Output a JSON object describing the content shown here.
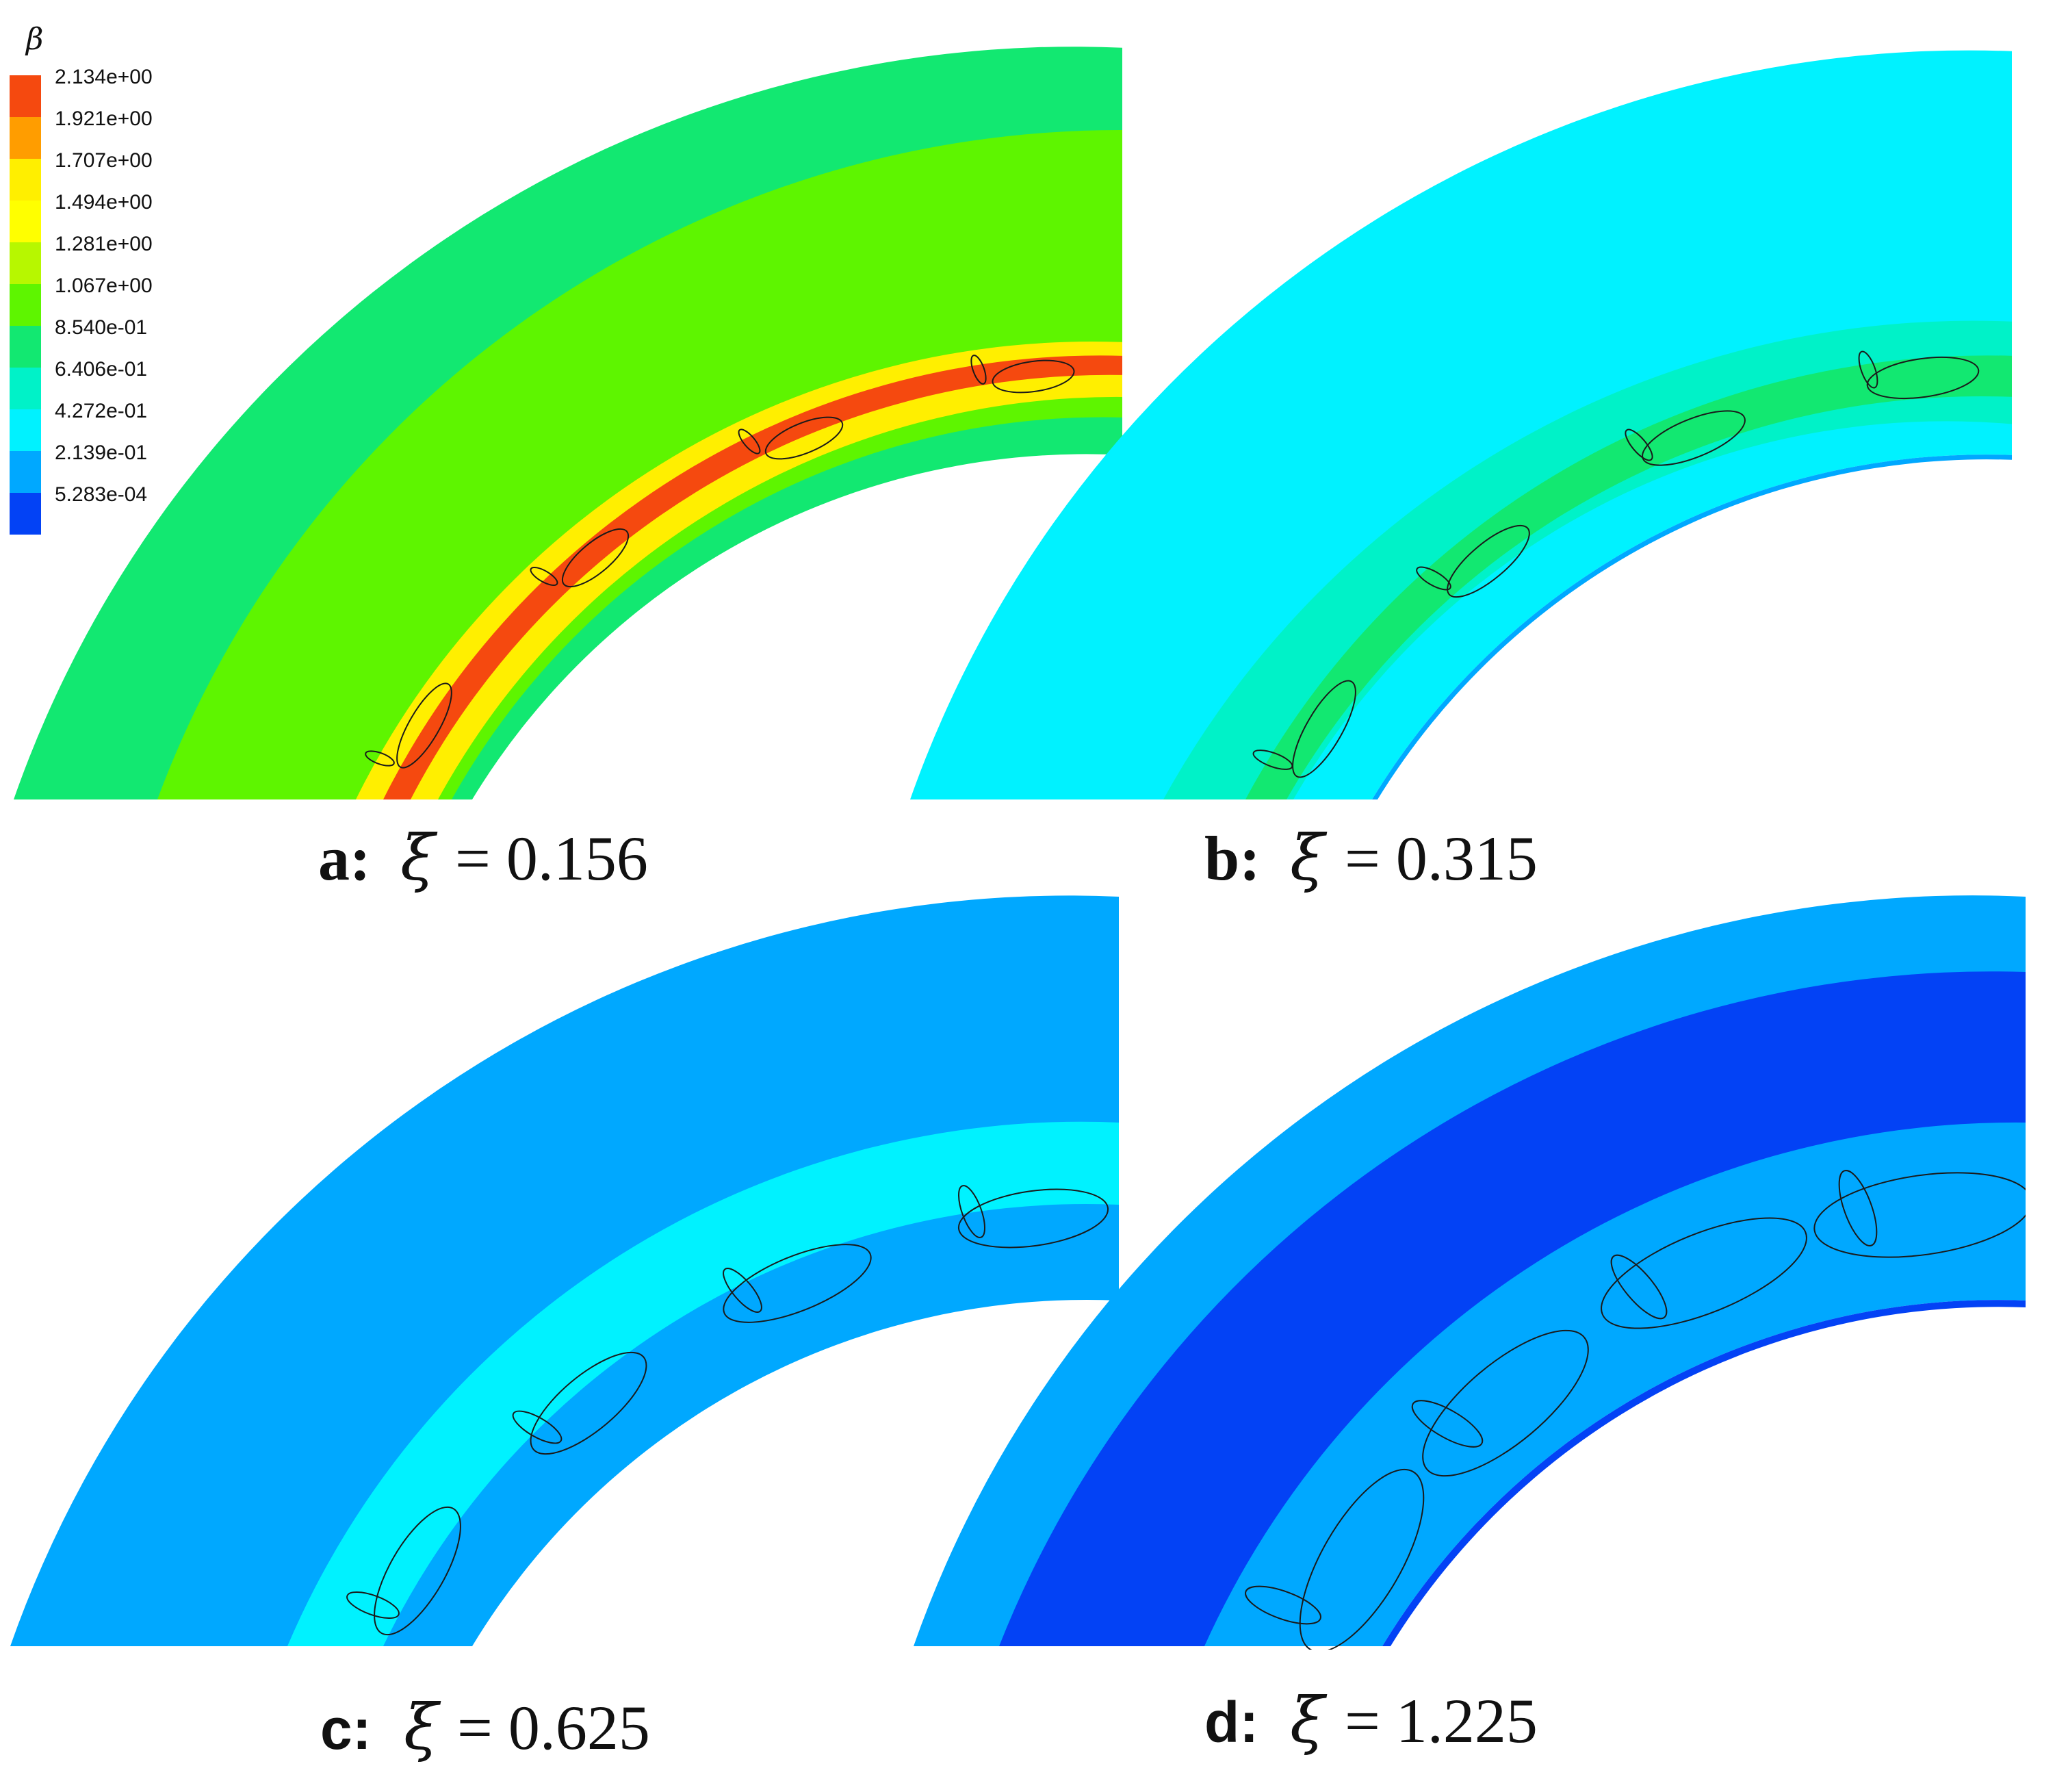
{
  "legend": {
    "symbol": "β",
    "levels": [
      {
        "label": "2.134e+00",
        "color": "#f5490f"
      },
      {
        "label": "1.921e+00",
        "color": "#ff9d00"
      },
      {
        "label": "1.707e+00",
        "color": "#ffef00"
      },
      {
        "label": "1.494e+00",
        "color": "#ffff00"
      },
      {
        "label": "1.281e+00",
        "color": "#b7f700"
      },
      {
        "label": "1.067e+00",
        "color": "#5ef500"
      },
      {
        "label": "8.540e-01",
        "color": "#12e871"
      },
      {
        "label": "6.406e-01",
        "color": "#00f2c8"
      },
      {
        "label": "4.272e-01",
        "color": "#00f2ff"
      },
      {
        "label": "2.139e-01",
        "color": "#00a8ff"
      },
      {
        "label": "5.283e-04",
        "color": "#0342f5"
      }
    ]
  },
  "panels": [
    {
      "id": "a",
      "letter": "a:",
      "symbol": "ξ",
      "value": "= 0.156",
      "background": "#12e871",
      "band": "#5ef500",
      "core": "#ffef00",
      "hot": "#f5490f"
    },
    {
      "id": "b",
      "letter": "b:",
      "symbol": "ξ",
      "value": "= 0.315",
      "background": "#00f2ff",
      "band": "#00f2c8",
      "core": "#12e871",
      "hot": "#5ef500"
    },
    {
      "id": "c",
      "letter": "c:",
      "symbol": "ξ",
      "value": "= 0.625",
      "background": "#00a8ff",
      "band": "#00f2ff",
      "core": "#00f2ff",
      "hot": "#00f2ff"
    },
    {
      "id": "d",
      "letter": "d:",
      "symbol": "ξ",
      "value": "= 1.225",
      "background": "#00a8ff",
      "band": "#0342f5",
      "core": "#00a8ff",
      "hot": "#0342f5"
    }
  ]
}
